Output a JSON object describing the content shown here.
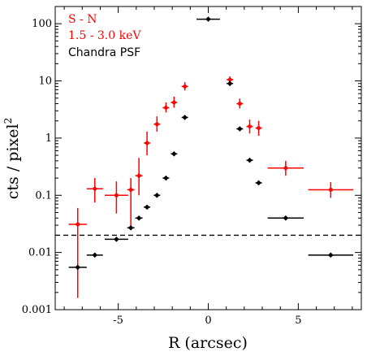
{
  "chart_data": {
    "type": "scatter",
    "title": "",
    "xlabel": "R (arcsec)",
    "ylabel": "cts / pixel",
    "ylabel_superscript": "2",
    "xlim": [
      -8.5,
      8.5
    ],
    "ylim": [
      0.001,
      200
    ],
    "yscale": "log",
    "x_ticks": [
      -5,
      0,
      5
    ],
    "x_tick_labels": [
      "-5",
      "0",
      "5"
    ],
    "y_ticks": [
      0.001,
      0.01,
      0.1,
      1,
      10,
      100
    ],
    "y_tick_labels": [
      "0.001",
      "0.01",
      "0.1",
      "1",
      "10",
      "100"
    ],
    "grid": false,
    "legend_position": "top-left",
    "legend": {
      "line1": "S - N",
      "line2": "1.5 - 3.0 keV",
      "line3": "Chandra PSF"
    },
    "reference_line": {
      "y": 0.02,
      "style": "dashed",
      "color": "#000000"
    },
    "colors": {
      "s_minus_n": "#ff0000",
      "psf": "#000000"
    },
    "series": [
      {
        "key": "s_minus_n",
        "points": [
          {
            "x": -7.25,
            "xerr": 0.5,
            "y": 0.031,
            "ylo": 0.0016,
            "yhi": 0.06
          },
          {
            "x": -6.3,
            "xerr": 0.45,
            "y": 0.13,
            "ylo": 0.075,
            "yhi": 0.2
          },
          {
            "x": -5.1,
            "xerr": 0.65,
            "y": 0.1,
            "ylo": 0.048,
            "yhi": 0.175
          },
          {
            "x": -4.3,
            "xerr": 0.2,
            "y": 0.125,
            "ylo": 0.026,
            "yhi": 0.2
          },
          {
            "x": -3.85,
            "xerr": 0.2,
            "y": 0.22,
            "ylo": 0.1,
            "yhi": 0.45
          },
          {
            "x": -3.4,
            "xerr": 0.18,
            "y": 0.82,
            "ylo": 0.5,
            "yhi": 1.3
          },
          {
            "x": -2.85,
            "xerr": 0.18,
            "y": 1.75,
            "ylo": 1.3,
            "yhi": 2.4
          },
          {
            "x": -2.35,
            "xerr": 0.18,
            "y": 3.4,
            "ylo": 2.8,
            "yhi": 4.2
          },
          {
            "x": -1.9,
            "xerr": 0.18,
            "y": 4.2,
            "ylo": 3.4,
            "yhi": 5.3
          },
          {
            "x": -1.3,
            "xerr": 0.18,
            "y": 8.0,
            "ylo": 6.8,
            "yhi": 9.5
          },
          {
            "x": 1.2,
            "xerr": 0.18,
            "y": 10.5,
            "ylo": 9.2,
            "yhi": 12.0
          },
          {
            "x": 1.75,
            "xerr": 0.18,
            "y": 4.0,
            "ylo": 3.3,
            "yhi": 4.9
          },
          {
            "x": 2.3,
            "xerr": 0.18,
            "y": 1.6,
            "ylo": 1.2,
            "yhi": 2.1
          },
          {
            "x": 2.8,
            "xerr": 0.18,
            "y": 1.5,
            "ylo": 1.1,
            "yhi": 2.0
          },
          {
            "x": 4.3,
            "xerr": 1.0,
            "y": 0.3,
            "ylo": 0.22,
            "yhi": 0.4
          },
          {
            "x": 6.8,
            "xerr": 1.25,
            "y": 0.125,
            "ylo": 0.09,
            "yhi": 0.17
          }
        ]
      },
      {
        "key": "psf",
        "points": [
          {
            "x": -7.25,
            "xerr": 0.5,
            "y": 0.0055
          },
          {
            "x": -6.3,
            "xerr": 0.45,
            "y": 0.009
          },
          {
            "x": -5.1,
            "xerr": 0.65,
            "y": 0.017
          },
          {
            "x": -4.3,
            "xerr": 0.2,
            "y": 0.027
          },
          {
            "x": -3.85,
            "xerr": 0.2,
            "y": 0.04
          },
          {
            "x": -3.4,
            "xerr": 0.18,
            "y": 0.062
          },
          {
            "x": -2.85,
            "xerr": 0.18,
            "y": 0.1
          },
          {
            "x": -2.35,
            "xerr": 0.18,
            "y": 0.2
          },
          {
            "x": -1.9,
            "xerr": 0.18,
            "y": 0.53
          },
          {
            "x": -1.3,
            "xerr": 0.18,
            "y": 2.3
          },
          {
            "x": 0.0,
            "xerr": 0.65,
            "y": 120
          },
          {
            "x": 1.2,
            "xerr": 0.18,
            "y": 9.0
          },
          {
            "x": 1.75,
            "xerr": 0.18,
            "y": 1.45
          },
          {
            "x": 2.3,
            "xerr": 0.18,
            "y": 0.41
          },
          {
            "x": 2.8,
            "xerr": 0.18,
            "y": 0.165
          },
          {
            "x": 4.3,
            "xerr": 1.0,
            "y": 0.04
          },
          {
            "x": 6.8,
            "xerr": 1.25,
            "y": 0.009
          }
        ]
      }
    ]
  }
}
